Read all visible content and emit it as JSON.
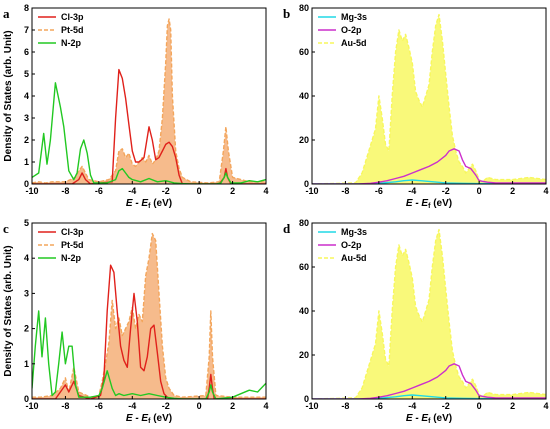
{
  "chart_data": [
    {
      "type": "area",
      "panel_label": "a",
      "xlabel": "E - Ef (eV)",
      "ylabel": "Density of States (arb. Unit)",
      "xlim": [
        -10,
        4
      ],
      "ylim": [
        0,
        8
      ],
      "xticks": [
        -10,
        -8,
        -6,
        -4,
        -2,
        0,
        2,
        4
      ],
      "yticks": [
        0,
        1,
        2,
        3,
        4,
        5,
        6,
        7,
        8
      ],
      "legend_position": "top-left",
      "series": [
        {
          "name": "Cl-3p",
          "color": "#e0211b",
          "style": "solid",
          "x": [
            -10,
            -7.6,
            -7.2,
            -7.0,
            -6.8,
            -6.5,
            -5.2,
            -5.0,
            -4.8,
            -4.6,
            -4.4,
            -4.2,
            -4.0,
            -3.8,
            -3.6,
            -3.3,
            -3.0,
            -2.8,
            -2.6,
            -2.4,
            -2.2,
            -2.0,
            -1.8,
            -1.6,
            -1.4,
            -1.2,
            -1.0,
            1.2,
            1.5,
            1.6,
            1.7,
            1.9,
            4
          ],
          "y": [
            0,
            0,
            0.2,
            0.5,
            0.2,
            0,
            0.1,
            3.0,
            5.2,
            4.8,
            3.9,
            2.7,
            1.5,
            1.0,
            1.0,
            1.2,
            2.6,
            2.0,
            1.1,
            1.2,
            1.5,
            1.8,
            1.9,
            1.7,
            1.2,
            0.4,
            0,
            0,
            0.3,
            0.7,
            0.3,
            0,
            0
          ]
        },
        {
          "name": "Pt-5d",
          "color": "#f3a55b",
          "style": "dashed",
          "fill": "#f6bb8c",
          "x": [
            -10,
            -9.6,
            -9.2,
            -8.8,
            -8.0,
            -7.4,
            -7.2,
            -7.0,
            -6.8,
            -6.6,
            -6.0,
            -5.4,
            -5.0,
            -4.8,
            -4.6,
            -4.4,
            -4.2,
            -4.0,
            -3.8,
            -3.6,
            -3.4,
            -3.2,
            -3.0,
            -2.8,
            -2.6,
            -2.4,
            -2.2,
            -2.0,
            -1.9,
            -1.8,
            -1.7,
            -1.6,
            -1.4,
            -1.2,
            -1.0,
            -0.5,
            0.5,
            1.2,
            1.45,
            1.6,
            1.75,
            2.0,
            3.0,
            4
          ],
          "y": [
            0.05,
            0.1,
            0.05,
            0.1,
            0.1,
            0.3,
            0.6,
            0.8,
            0.5,
            0.2,
            0.1,
            0.2,
            0.6,
            1.5,
            1.6,
            1.2,
            1.4,
            0.9,
            0.8,
            1.0,
            1.2,
            1.0,
            1.3,
            0.9,
            1.1,
            1.5,
            3.0,
            5.5,
            7.2,
            7.5,
            7.0,
            4.0,
            1.5,
            0.7,
            0.3,
            0.1,
            0.05,
            0.1,
            1.5,
            2.6,
            1.5,
            0.3,
            0.1,
            0.1
          ]
        },
        {
          "name": "N-2p",
          "color": "#22c822",
          "style": "solid",
          "x": [
            -10,
            -9.6,
            -9.3,
            -9.1,
            -8.9,
            -8.6,
            -8.3,
            -8.1,
            -7.8,
            -7.5,
            -7.3,
            -7.1,
            -6.9,
            -6.7,
            -6.5,
            -6.3,
            -5.5,
            -5.0,
            -4.8,
            -4.6,
            -4.4,
            -4.2,
            -4.0,
            -3.5,
            -3.0,
            -2.5,
            -2.0,
            -1.5,
            -1.0,
            -0.5,
            0,
            1.0,
            1.3,
            1.5,
            1.6,
            1.7,
            1.9,
            2.5,
            3.0,
            3.5,
            4
          ],
          "y": [
            0.3,
            0.5,
            2.3,
            0.9,
            2.0,
            4.6,
            3.5,
            2.6,
            0.6,
            0.2,
            0.5,
            1.6,
            2.0,
            1.4,
            0.4,
            0.05,
            0.05,
            0.2,
            0.6,
            0.7,
            0.5,
            0.3,
            0.2,
            0.1,
            0.25,
            0.1,
            0.15,
            0.05,
            0.02,
            0,
            0,
            0,
            0.05,
            0.3,
            0.5,
            0.3,
            0.05,
            0.05,
            0.15,
            0.1,
            0.2
          ]
        }
      ]
    },
    {
      "type": "area",
      "panel_label": "b",
      "xlabel": "E - Ef (eV)",
      "ylabel": "",
      "xlim": [
        -10,
        4
      ],
      "ylim": [
        0,
        80
      ],
      "xticks": [
        -10,
        -8,
        -6,
        -4,
        -2,
        0,
        2,
        4
      ],
      "yticks": [
        0,
        20,
        40,
        60,
        80
      ],
      "legend_position": "top-left",
      "series": [
        {
          "name": "Mg-3s",
          "color": "#21d9e6",
          "style": "solid",
          "x": [
            -10,
            -7,
            -6.0,
            -5.0,
            -4.5,
            -4.0,
            -3.5,
            -3.0,
            -2.5,
            -2.0,
            -1.0,
            0,
            1,
            2,
            4
          ],
          "y": [
            0,
            0,
            0.3,
            1.0,
            1.5,
            1.8,
            1.5,
            1.2,
            0.8,
            0.5,
            0.3,
            0.2,
            0.2,
            0.2,
            0.2
          ]
        },
        {
          "name": "O-2p",
          "color": "#cc2fcc",
          "style": "solid",
          "x": [
            -10,
            -7.2,
            -6.5,
            -6.0,
            -5.5,
            -5.0,
            -4.5,
            -4.0,
            -3.5,
            -3.0,
            -2.5,
            -2.0,
            -1.8,
            -1.5,
            -1.2,
            -1.0,
            -0.8,
            -0.5,
            -0.2,
            0,
            0.5,
            1.0,
            2.0,
            3.0,
            4
          ],
          "y": [
            0,
            0,
            0.3,
            0.8,
            1.5,
            2.5,
            3.5,
            5.0,
            6.5,
            8.0,
            10.0,
            13.0,
            15.0,
            16.0,
            15.0,
            11.0,
            8.0,
            7.0,
            4.0,
            1.5,
            0.8,
            0.5,
            0.5,
            0.5,
            0.5
          ]
        },
        {
          "name": "Au-5d",
          "color": "#f7f75c",
          "style": "dashed",
          "fill": "#f9f97a",
          "x": [
            -10,
            -7.4,
            -7.0,
            -6.6,
            -6.2,
            -6.0,
            -5.8,
            -5.6,
            -5.4,
            -5.2,
            -5.0,
            -4.8,
            -4.6,
            -4.4,
            -4.2,
            -4.0,
            -3.8,
            -3.6,
            -3.4,
            -3.2,
            -3.0,
            -2.8,
            -2.6,
            -2.4,
            -2.2,
            -2.0,
            -1.8,
            -1.6,
            -1.4,
            -1.2,
            -1.0,
            -0.8,
            -0.6,
            -0.4,
            -0.2,
            0,
            0.2,
            0.5,
            1.0,
            2.0,
            3.0,
            4
          ],
          "y": [
            0,
            0.5,
            5,
            15,
            25,
            40,
            30,
            18,
            15,
            40,
            60,
            70,
            65,
            68,
            62,
            55,
            42,
            38,
            35,
            40,
            45,
            60,
            72,
            77,
            65,
            50,
            35,
            22,
            15,
            10,
            8,
            5,
            7,
            9,
            6,
            2,
            1,
            3,
            2,
            2,
            3,
            2
          ]
        }
      ]
    },
    {
      "type": "area",
      "panel_label": "c",
      "xlabel": "E - Ef (eV)",
      "ylabel": "Density of States (arb. Unit)",
      "xlim": [
        -10,
        4
      ],
      "ylim": [
        0,
        5
      ],
      "xticks": [
        -10,
        -8,
        -6,
        -4,
        -2,
        0,
        2,
        4
      ],
      "yticks": [
        0,
        1,
        2,
        3,
        4,
        5
      ],
      "legend_position": "top-left",
      "series": [
        {
          "name": "Cl-3p",
          "color": "#e0211b",
          "style": "solid",
          "x": [
            -10,
            -9.5,
            -8.6,
            -8.3,
            -8.0,
            -7.8,
            -7.5,
            -7.2,
            -6.5,
            -5.9,
            -5.7,
            -5.5,
            -5.3,
            -5.1,
            -4.9,
            -4.7,
            -4.5,
            -4.3,
            -4.1,
            -3.9,
            -3.7,
            -3.5,
            -3.3,
            -3.1,
            -2.9,
            -2.7,
            -2.5,
            -2.3,
            -2.1,
            -1.9,
            -1.7,
            -1.5,
            0.5,
            0.6,
            0.7,
            0.8,
            0.9,
            4
          ],
          "y": [
            0,
            0,
            0,
            0.2,
            0.4,
            0.2,
            0.5,
            0.1,
            0,
            0.1,
            0.6,
            2.5,
            3.8,
            3.6,
            2.5,
            1.5,
            1.1,
            0.9,
            2.0,
            3.0,
            2.2,
            0.9,
            0.8,
            1.2,
            2.0,
            2.1,
            1.3,
            0.5,
            0.15,
            0.05,
            0,
            0,
            0,
            0.3,
            0.7,
            0.3,
            0,
            0
          ]
        },
        {
          "name": "Pt-5d",
          "color": "#f3a55b",
          "style": "dashed",
          "fill": "#f6bb8c",
          "x": [
            -10,
            -9.5,
            -8.8,
            -8.3,
            -8.0,
            -7.8,
            -7.5,
            -7.2,
            -6.5,
            -6.0,
            -5.8,
            -5.6,
            -5.4,
            -5.2,
            -5.0,
            -4.8,
            -4.6,
            -4.4,
            -4.2,
            -4.0,
            -3.8,
            -3.6,
            -3.4,
            -3.2,
            -3.0,
            -2.8,
            -2.6,
            -2.4,
            -2.2,
            -2.0,
            -1.8,
            -1.5,
            -1.0,
            0.4,
            0.6,
            0.7,
            0.8,
            1.0,
            2.0,
            4
          ],
          "y": [
            0.05,
            0.05,
            0.1,
            0.3,
            0.6,
            0.2,
            0.9,
            0.2,
            0.05,
            0.1,
            0.5,
            1.0,
            1.6,
            2.8,
            2.0,
            2.3,
            1.8,
            2.0,
            2.2,
            2.6,
            2.0,
            2.4,
            2.2,
            3.5,
            4.0,
            4.7,
            4.5,
            3.0,
            1.5,
            0.6,
            0.3,
            0.1,
            0.05,
            0.1,
            1.2,
            2.5,
            1.2,
            0.1,
            0.05,
            0.05
          ]
        },
        {
          "name": "N-2p",
          "color": "#22c822",
          "style": "solid",
          "x": [
            -10,
            -9.8,
            -9.6,
            -9.4,
            -9.2,
            -9.0,
            -8.8,
            -8.6,
            -8.4,
            -8.2,
            -8.0,
            -7.8,
            -7.6,
            -7.4,
            -7.2,
            -6.5,
            -6.0,
            -5.8,
            -5.5,
            -5.2,
            -5.0,
            -4.8,
            -4.5,
            -4.0,
            -3.5,
            -3.0,
            -2.5,
            -2.0,
            -1.5,
            -1.0,
            0.4,
            0.6,
            0.7,
            0.8,
            1.0,
            2.0,
            2.5,
            3.0,
            3.5,
            4
          ],
          "y": [
            0.3,
            1.5,
            2.5,
            1.2,
            2.3,
            1.0,
            0.1,
            0.2,
            1.0,
            1.9,
            1.0,
            1.5,
            1.5,
            0.4,
            0.05,
            0.05,
            0.1,
            0.3,
            0.8,
            0.3,
            0.1,
            0.15,
            0.1,
            0.15,
            0.1,
            0.15,
            0.1,
            0.05,
            0.02,
            0,
            0,
            0.2,
            0.4,
            0.2,
            0,
            0.05,
            0.15,
            0.25,
            0.2,
            0.45
          ]
        }
      ]
    },
    {
      "type": "area",
      "panel_label": "d",
      "xlabel": "E - Ef (eV)",
      "ylabel": "",
      "xlim": [
        -10,
        4
      ],
      "ylim": [
        0,
        80
      ],
      "xticks": [
        -10,
        -8,
        -6,
        -4,
        -2,
        0,
        2,
        4
      ],
      "yticks": [
        0,
        20,
        40,
        60,
        80
      ],
      "legend_position": "top-left",
      "series": [
        {
          "name": "Mg-3s",
          "color": "#21d9e6",
          "style": "solid",
          "x": [
            -10,
            -7,
            -6.0,
            -5.0,
            -4.5,
            -4.0,
            -3.5,
            -3.0,
            -2.5,
            -2.0,
            -1.0,
            0,
            1,
            2,
            4
          ],
          "y": [
            0,
            0,
            0.3,
            1.0,
            1.5,
            1.8,
            1.5,
            1.2,
            0.8,
            0.5,
            0.3,
            0.2,
            0.2,
            0.2,
            0.2
          ]
        },
        {
          "name": "O-2p",
          "color": "#cc2fcc",
          "style": "solid",
          "x": [
            -10,
            -7.2,
            -6.5,
            -6.0,
            -5.5,
            -5.0,
            -4.5,
            -4.0,
            -3.5,
            -3.0,
            -2.5,
            -2.0,
            -1.8,
            -1.5,
            -1.2,
            -1.0,
            -0.8,
            -0.5,
            -0.2,
            0,
            0.5,
            1.0,
            2.0,
            3.0,
            4
          ],
          "y": [
            0,
            0,
            0.3,
            0.8,
            1.5,
            2.5,
            3.5,
            5.0,
            6.5,
            8.0,
            10.0,
            13.0,
            15.0,
            16.0,
            15.0,
            11.0,
            8.0,
            7.0,
            4.0,
            1.5,
            0.8,
            0.5,
            0.5,
            0.5,
            0.5
          ]
        },
        {
          "name": "Au-5d",
          "color": "#f7f75c",
          "style": "dashed",
          "fill": "#f9f97a",
          "x": [
            -10,
            -7.4,
            -7.0,
            -6.6,
            -6.2,
            -6.0,
            -5.8,
            -5.6,
            -5.4,
            -5.2,
            -5.0,
            -4.8,
            -4.6,
            -4.4,
            -4.2,
            -4.0,
            -3.8,
            -3.6,
            -3.4,
            -3.2,
            -3.0,
            -2.8,
            -2.6,
            -2.4,
            -2.2,
            -2.0,
            -1.8,
            -1.6,
            -1.4,
            -1.2,
            -1.0,
            -0.8,
            -0.6,
            -0.4,
            -0.2,
            0,
            0.2,
            0.5,
            1.0,
            2.0,
            3.0,
            4
          ],
          "y": [
            0,
            0.5,
            5,
            15,
            25,
            40,
            30,
            18,
            15,
            40,
            60,
            70,
            65,
            68,
            62,
            55,
            42,
            38,
            35,
            40,
            45,
            60,
            72,
            77,
            65,
            50,
            35,
            22,
            15,
            10,
            8,
            5,
            7,
            9,
            6,
            2,
            1,
            3,
            2,
            2,
            3,
            2
          ]
        }
      ]
    }
  ]
}
